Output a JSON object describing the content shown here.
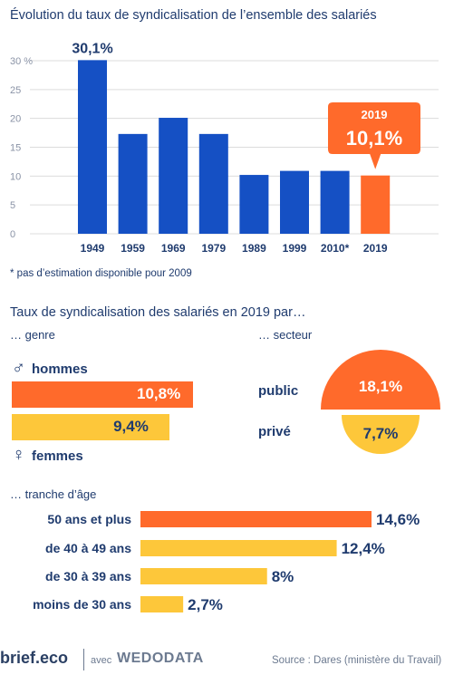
{
  "title": "Évolution du taux de syndicalisation de l’ensemble des salariés",
  "note": "* pas d’estimation disponible pour 2009",
  "section_title": "Taux de syndicalisation des salariés en 2019 par…",
  "colors": {
    "blue": "#1550c4",
    "orange": "#ff6a2b",
    "yellow": "#fdc73a",
    "text": "#1f3b6e",
    "grid": "#dcdcdc"
  },
  "chart_data": [
    {
      "type": "bar",
      "title": "Évolution du taux de syndicalisation de l’ensemble des salariés",
      "categories": [
        "1949",
        "1959",
        "1969",
        "1979",
        "1989",
        "1999",
        "2010*",
        "2019"
      ],
      "values": [
        30.1,
        17.3,
        20.1,
        17.3,
        10.2,
        10.9,
        10.9,
        10.1
      ],
      "ylim": [
        0,
        30
      ],
      "yticks": [
        "0",
        "5",
        "10",
        "15",
        "20",
        "25",
        "30 %"
      ],
      "grid": true,
      "highlight_index": 7,
      "annotations": [
        {
          "category": "1949",
          "text": "30,1%"
        },
        {
          "category": "2019",
          "year_text": "2019",
          "value_text": "10,1%"
        }
      ]
    },
    {
      "type": "bar",
      "orientation": "horizontal",
      "subtitle": "… genre",
      "categories": [
        "hommes",
        "femmes"
      ],
      "values": [
        10.8,
        9.4
      ],
      "value_labels": [
        "10,8%",
        "9,4%"
      ],
      "symbols": [
        "♂",
        "♀"
      ]
    },
    {
      "type": "pie",
      "subtitle": "… secteur",
      "categories": [
        "public",
        "privé"
      ],
      "values": [
        18.1,
        7.7
      ],
      "value_labels": [
        "18,1%",
        "7,7%"
      ]
    },
    {
      "type": "bar",
      "orientation": "horizontal",
      "subtitle": "… tranche d’âge",
      "categories": [
        "50 ans et plus",
        "de 40 à 49 ans",
        "de 30 à 39 ans",
        "moins de 30 ans"
      ],
      "values": [
        14.6,
        12.4,
        8,
        2.7
      ],
      "value_labels": [
        "14,6%",
        "12,4%",
        "8%",
        "2,7%"
      ]
    }
  ],
  "footer": {
    "logo": "brief.eco",
    "avec": "avec",
    "partner": "WEDODATA",
    "source": "Source : Dares (ministère du Travail)"
  }
}
